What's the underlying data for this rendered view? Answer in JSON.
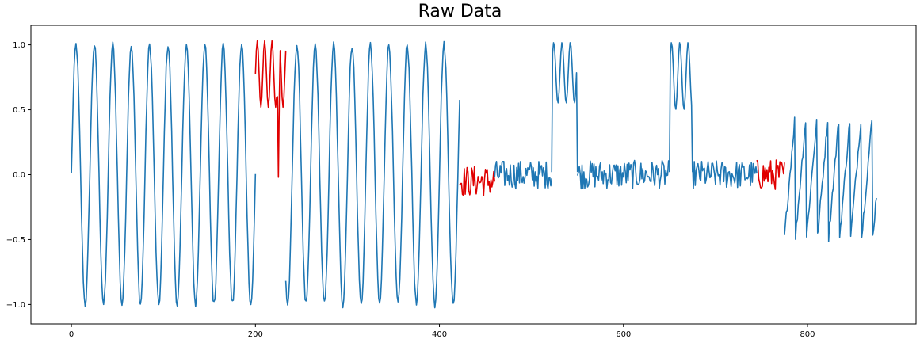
{
  "chart_data": {
    "type": "line",
    "title": "Raw Data",
    "xlabel": "",
    "ylabel": "",
    "xlim": [
      -44,
      918
    ],
    "ylim": [
      -1.15,
      1.15
    ],
    "x_ticks": [
      0,
      200,
      400,
      600,
      800
    ],
    "x_tick_labels": [
      "0",
      "200",
      "400",
      "600",
      "800"
    ],
    "y_ticks": [
      -1.0,
      -0.5,
      0.0,
      0.5,
      1.0
    ],
    "y_tick_labels": [
      "−1.0",
      "−0.5",
      "0.0",
      "0.5",
      "1.0"
    ],
    "grid": false,
    "legend": "none",
    "colors": {
      "series": "#1f77b4",
      "anomaly": "#e00000",
      "axis": "#000000"
    },
    "x_range": [
      0,
      875
    ],
    "segments": [
      {
        "kind": "sine",
        "x_start": 0,
        "x_end": 200,
        "period": 20,
        "amplitude": 1.0,
        "noise": 0.03
      },
      {
        "kind": "anomaly_sine",
        "x_start": 200,
        "x_end": 233,
        "low": 0.52,
        "high": 1.03,
        "dip_x": 225,
        "dip_y": -0.02
      },
      {
        "kind": "sine",
        "x_start": 233,
        "x_end": 422,
        "period": 20,
        "amplitude": 1.0,
        "noise": 0.03
      },
      {
        "kind": "noise",
        "x_start": 422,
        "x_end": 460,
        "center": -0.05,
        "spread": 0.12,
        "anomaly": true
      },
      {
        "kind": "noise",
        "x_start": 460,
        "x_end": 522,
        "center": 0.0,
        "spread": 0.11
      },
      {
        "kind": "plateau",
        "x_start": 522,
        "x_end": 550,
        "low": 0.55,
        "high": 1.02
      },
      {
        "kind": "noise",
        "x_start": 550,
        "x_end": 650,
        "center": 0.0,
        "spread": 0.11
      },
      {
        "kind": "plateau",
        "x_start": 650,
        "x_end": 675,
        "low": 0.5,
        "high": 1.02
      },
      {
        "kind": "noise",
        "x_start": 675,
        "x_end": 745,
        "center": 0.0,
        "spread": 0.11
      },
      {
        "kind": "noise",
        "x_start": 745,
        "x_end": 775,
        "center": 0.0,
        "spread": 0.12,
        "anomaly": true
      },
      {
        "kind": "sawtooth",
        "x_start": 775,
        "x_end": 875,
        "period": 12,
        "low": -0.48,
        "high": 0.5
      }
    ]
  }
}
